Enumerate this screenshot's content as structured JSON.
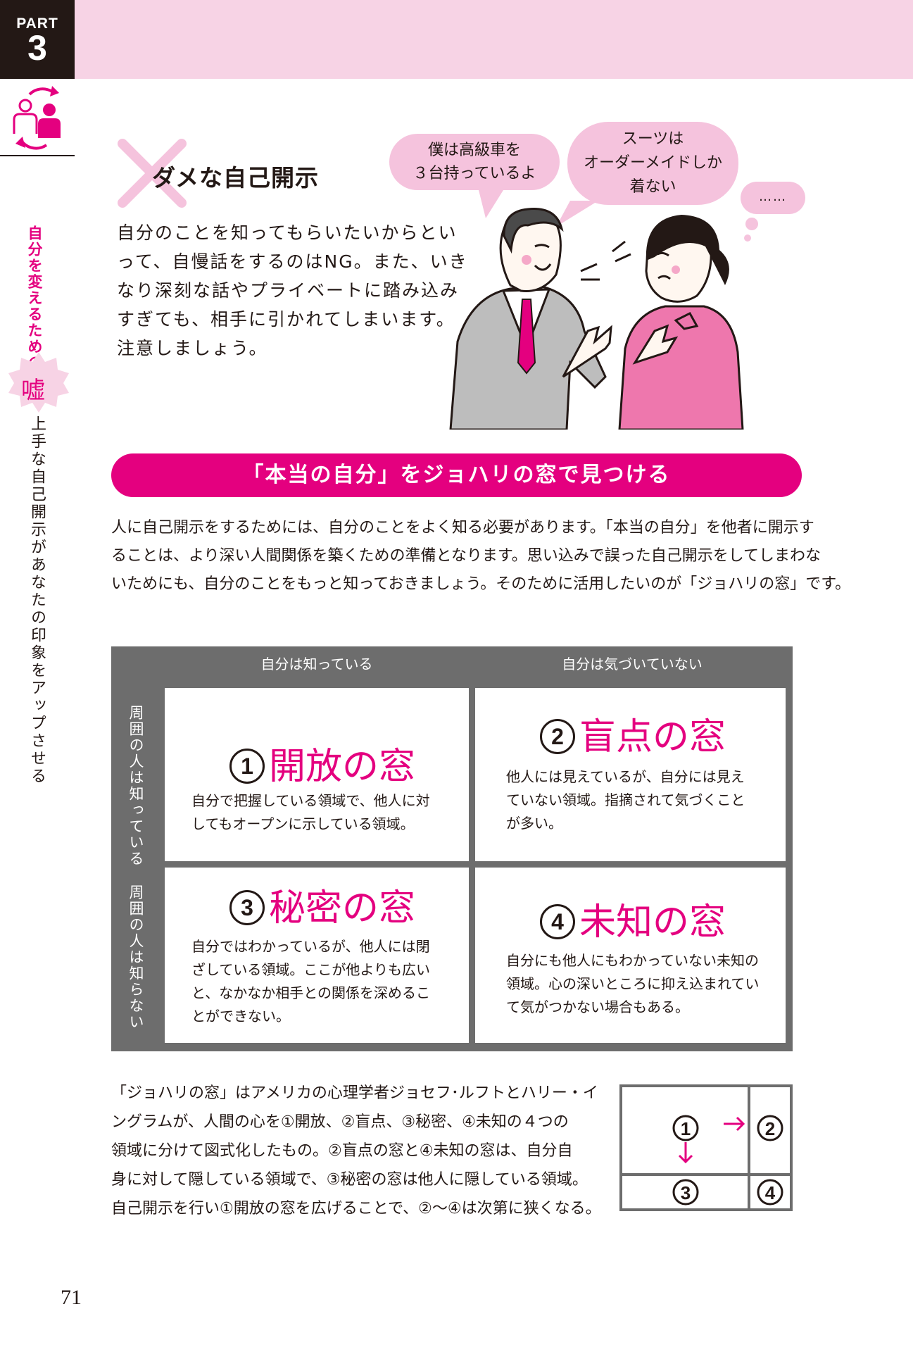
{
  "header": {
    "part_label": "PART",
    "part_number": "3"
  },
  "sidebar": {
    "subtitle": "自分を変えるための",
    "badge_kanji": "嘘",
    "chapter_title": "上手な自己開示があなたの印象をアップさせる"
  },
  "bad_example": {
    "title": "ダメな自己開示",
    "lines": [
      "自分のことを知ってもらいたいからとい",
      "って、自慢話をするのはNG。また、いき",
      "なり深刻な話やプライベートに踏み込み",
      "すぎても、相手に引かれてしまいます。",
      "注意しましょう。"
    ],
    "bubbles": [
      {
        "lines": [
          "僕は高級車を",
          "３台持っているよ"
        ]
      },
      {
        "lines": [
          "スーツは",
          "オーダーメイドしか",
          "着ない"
        ]
      },
      {
        "lines": [
          "……"
        ]
      }
    ]
  },
  "section": {
    "title": "「本当の自分」をジョハリの窓で見つける"
  },
  "intro": {
    "lines": [
      "人に自己開示をするためには、自分のことをよく知る必要があります。「本当の自分」を他者に開示す",
      "ることは、より深い人間関係を築くための準備となります。思い込みで誤った自己開示をしてしまわな",
      "いためにも、自分のことをもっと知っておきましょう。そのために活用したいのが「ジョハリの窓」です。"
    ]
  },
  "johari": {
    "col_headers": [
      "自分は知っている",
      "自分は気づいていない"
    ],
    "row_headers": [
      "周囲の人は知っている",
      "周囲の人は知らない"
    ],
    "cells": [
      {
        "number": "1",
        "title": "開放の窓",
        "lines": [
          "自分で把握している領域で、他人に対",
          "してもオープンに示している領域。"
        ]
      },
      {
        "number": "2",
        "title": "盲点の窓",
        "lines": [
          "他人には見えているが、自分には見え",
          "ていない領域。指摘されて気づくこと",
          "が多い。"
        ]
      },
      {
        "number": "3",
        "title": "秘密の窓",
        "lines": [
          "自分ではわかっているが、他人には閉",
          "ざしている領域。ここが他よりも広い",
          "と、なかなか相手との関係を深めるこ",
          "とができない。"
        ]
      },
      {
        "number": "4",
        "title": "未知の窓",
        "lines": [
          "自分にも他人にもわかっていない未知の",
          "領域。心の深いところに抑え込まれてい",
          "て気がつかない場合もある。"
        ]
      }
    ]
  },
  "explanation": {
    "lines": [
      "「ジョハリの窓」はアメリカの心理学者ジョセフ･ルフトとハリー・イ",
      "ングラムが、人間の心を①開放、②盲点、③秘密、④未知の４つの",
      "領域に分けて図式化したもの。②盲点の窓と④未知の窓は、自分自",
      "身に対して隠している領域で、③秘密の窓は他人に隠している領域。",
      "自己開示を行い①開放の窓を広げることで、②〜④は次第に狭くなる。"
    ]
  },
  "mini_diagram": {
    "labels": [
      "1",
      "2",
      "3",
      "4"
    ],
    "arrow_color": "#e4007f"
  },
  "colors": {
    "accent": "#e4007f",
    "header_band": "#f7d3e5",
    "bubble": "#f5c3dd",
    "grid_gray": "#6d6d6d"
  },
  "footer": {
    "page_number": "71"
  }
}
